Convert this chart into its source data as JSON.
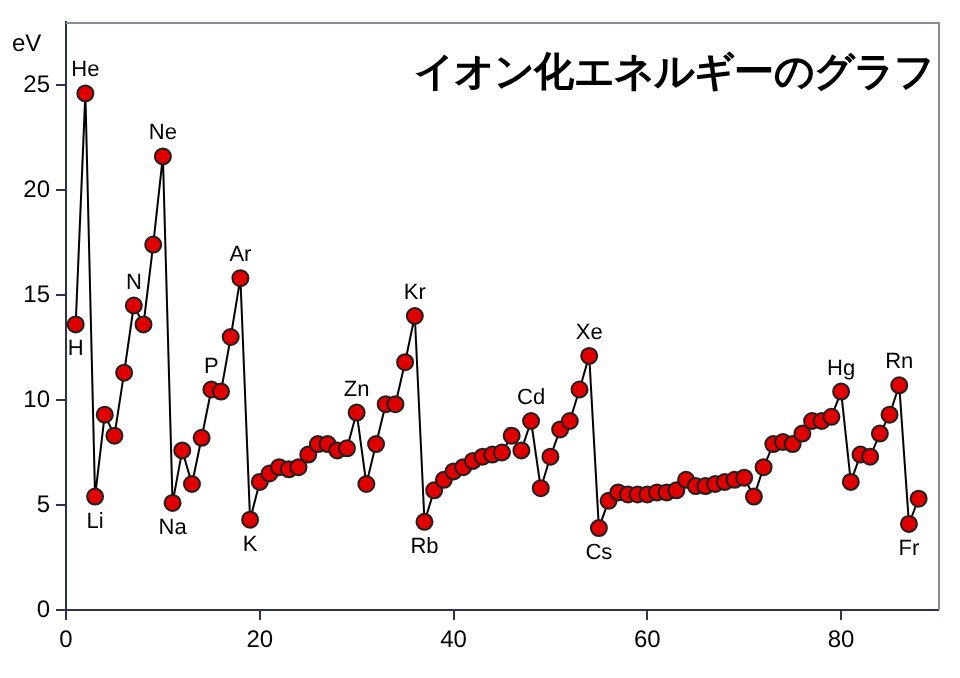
{
  "chart_data": {
    "type": "line",
    "title": "イオン化エネルギーのグラフ",
    "ylabel": "eV",
    "x": [
      1,
      2,
      3,
      4,
      5,
      6,
      7,
      8,
      9,
      10,
      11,
      12,
      13,
      14,
      15,
      16,
      17,
      18,
      19,
      20,
      21,
      22,
      23,
      24,
      25,
      26,
      27,
      28,
      29,
      30,
      31,
      32,
      33,
      34,
      35,
      36,
      37,
      38,
      39,
      40,
      41,
      42,
      43,
      44,
      45,
      46,
      47,
      48,
      49,
      50,
      51,
      52,
      53,
      54,
      55,
      56,
      57,
      58,
      59,
      60,
      61,
      62,
      63,
      64,
      65,
      66,
      67,
      68,
      69,
      70,
      71,
      72,
      73,
      74,
      75,
      76,
      77,
      78,
      79,
      80,
      81,
      82,
      83,
      84,
      85,
      86,
      87,
      88
    ],
    "series": [
      {
        "color": "#e00000",
        "values": [
          13.6,
          24.6,
          5.4,
          9.3,
          8.3,
          11.3,
          14.5,
          13.6,
          17.4,
          21.6,
          5.1,
          7.6,
          6.0,
          8.2,
          10.5,
          10.4,
          13.0,
          15.8,
          4.3,
          6.1,
          6.5,
          6.8,
          6.7,
          6.8,
          7.4,
          7.9,
          7.9,
          7.6,
          7.7,
          9.4,
          6.0,
          7.9,
          9.8,
          9.8,
          11.8,
          14.0,
          4.2,
          5.7,
          6.2,
          6.6,
          6.8,
          7.1,
          7.3,
          7.4,
          7.5,
          8.3,
          7.6,
          9.0,
          5.8,
          7.3,
          8.6,
          9.0,
          10.5,
          12.1,
          3.9,
          5.2,
          5.6,
          5.5,
          5.5,
          5.5,
          5.6,
          5.6,
          5.7,
          6.2,
          5.9,
          5.9,
          6.0,
          6.1,
          6.2,
          6.3,
          5.4,
          6.8,
          7.9,
          8.0,
          7.9,
          8.4,
          9.0,
          9.0,
          9.2,
          10.4,
          6.1,
          7.4,
          7.3,
          8.4,
          9.3,
          10.7,
          4.1,
          5.3
        ]
      }
    ],
    "marker": "circle",
    "line_style": "solid",
    "xlim": [
      0,
      90
    ],
    "xticks": [
      0,
      20,
      40,
      60,
      80
    ],
    "ylim": [
      0,
      28
    ],
    "yticks": [
      0,
      5,
      10,
      15,
      20,
      25
    ],
    "grid": false,
    "legend": false,
    "annotations": [
      {
        "text": "H",
        "x": 1,
        "y": 13.6
      },
      {
        "text": "He",
        "x": 2,
        "y": 24.6
      },
      {
        "text": "Li",
        "x": 3,
        "y": 5.4
      },
      {
        "text": "N",
        "x": 7,
        "y": 14.5
      },
      {
        "text": "Ne",
        "x": 10,
        "y": 21.6
      },
      {
        "text": "Na",
        "x": 11,
        "y": 5.1
      },
      {
        "text": "P",
        "x": 15,
        "y": 10.5
      },
      {
        "text": "Ar",
        "x": 18,
        "y": 15.8
      },
      {
        "text": "K",
        "x": 19,
        "y": 4.3
      },
      {
        "text": "Zn",
        "x": 30,
        "y": 9.4
      },
      {
        "text": "Kr",
        "x": 36,
        "y": 14.0
      },
      {
        "text": "Rb",
        "x": 37,
        "y": 4.2
      },
      {
        "text": "Cd",
        "x": 48,
        "y": 9.0
      },
      {
        "text": "Xe",
        "x": 54,
        "y": 12.1
      },
      {
        "text": "Cs",
        "x": 55,
        "y": 3.9
      },
      {
        "text": "Hg",
        "x": 80,
        "y": 10.4
      },
      {
        "text": "Rn",
        "x": 86,
        "y": 10.7
      },
      {
        "text": "Fr",
        "x": 87,
        "y": 4.1
      }
    ]
  }
}
